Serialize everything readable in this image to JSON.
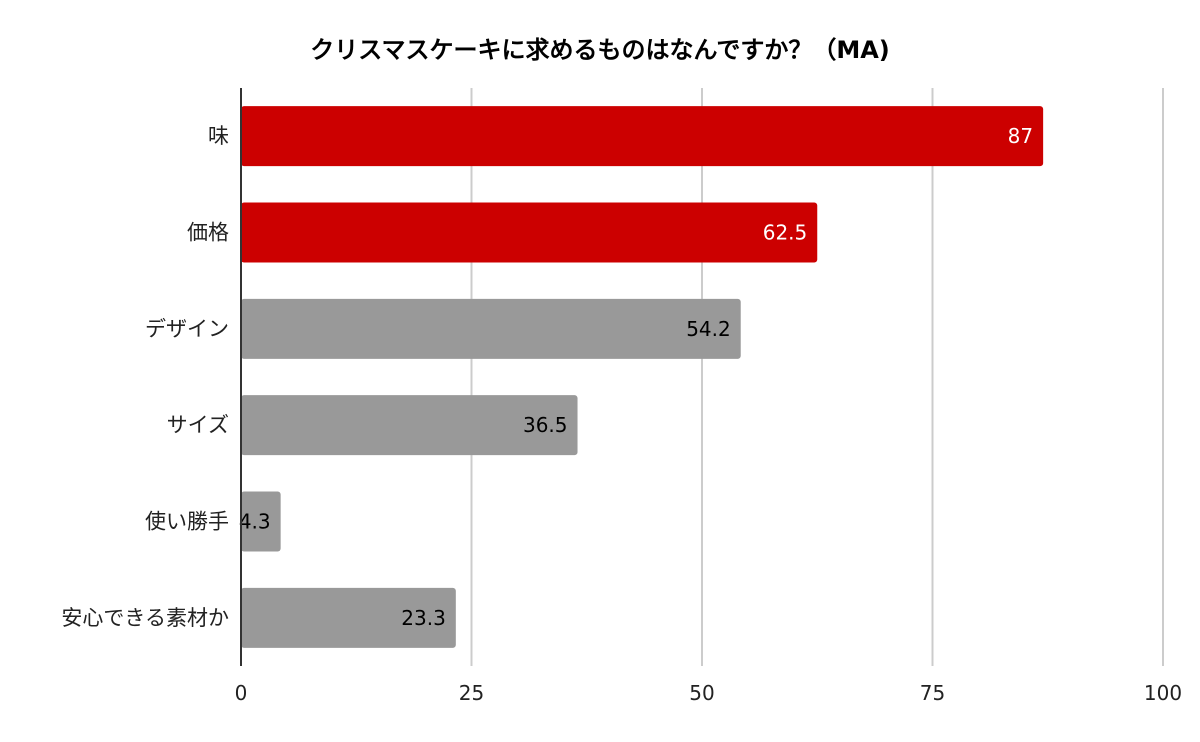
{
  "chart_data": {
    "type": "bar",
    "orientation": "horizontal",
    "title": "クリスマスケーキに求めるものはなんですか？（MA)",
    "xlabel": "",
    "ylabel": "",
    "categories": [
      "味",
      "価格",
      "デザイン",
      "サイズ",
      "使い勝手",
      "安心できる素材か"
    ],
    "values": [
      87,
      62.5,
      54.2,
      36.5,
      4.3,
      23.3
    ],
    "value_labels": [
      "87",
      "62.5",
      "54.2",
      "36.5",
      "4.3",
      "23.3"
    ],
    "bar_colors": [
      "#cc0000",
      "#cc0000",
      "#999999",
      "#999999",
      "#999999",
      "#999999"
    ],
    "label_colors": [
      "#ffffff",
      "#ffffff",
      "#000000",
      "#000000",
      "#000000",
      "#000000"
    ],
    "xlim": [
      0,
      100
    ],
    "xticks": [
      0,
      25,
      50,
      75,
      100
    ],
    "xtick_labels": [
      "0",
      "25",
      "50",
      "75",
      "100"
    ],
    "grid": true,
    "legend": "none"
  }
}
